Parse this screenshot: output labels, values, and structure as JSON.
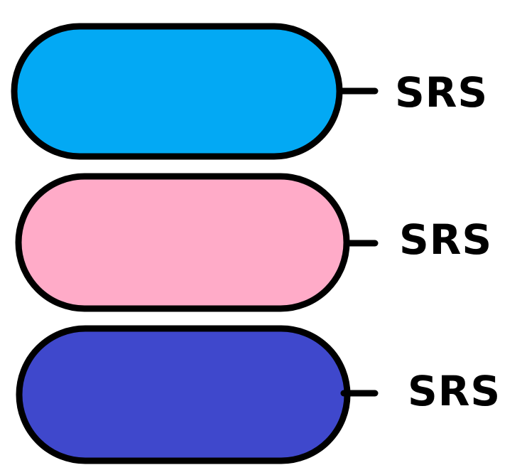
{
  "colors": {
    "pill_1": "#03A9F4",
    "pill_2": "#FFABC8",
    "pill_3": "#3F48CC",
    "outline": "#000000"
  },
  "items": [
    {
      "label": "SRS",
      "color": "#03A9F4"
    },
    {
      "label": "SRS",
      "color": "#FFABC8"
    },
    {
      "label": "SRS",
      "color": "#3F48CC"
    }
  ]
}
